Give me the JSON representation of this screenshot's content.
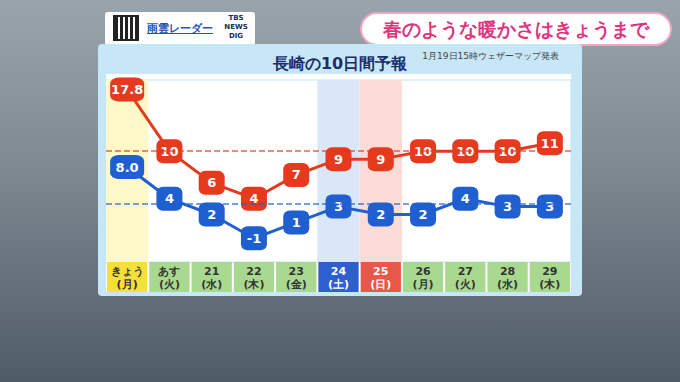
{
  "header": {
    "radar": "雨雲レーダー",
    "logo": "TBS NEWS DIG",
    "headline": "春のような暖かさはきょうまで"
  },
  "chart_data": {
    "type": "line",
    "title": "長崎の10日間予報",
    "subtitle": "1月19日15時ウェザーマップ発表",
    "categories": [
      "きょう",
      "あす",
      "21",
      "22",
      "23",
      "24",
      "25",
      "26",
      "27",
      "28",
      "29"
    ],
    "weekdays": [
      "(月)",
      "(火)",
      "(水)",
      "(木)",
      "(金)",
      "(土)",
      "(日)",
      "(月)",
      "(火)",
      "(水)",
      "(木)"
    ],
    "series": [
      {
        "color": "#e53a1e",
        "marker": "square",
        "line_style": "solid",
        "values": [
          17.8,
          10,
          6,
          4,
          7,
          9,
          9,
          10,
          10,
          10,
          11
        ],
        "normal": 10
      },
      {
        "color": "#1f5fd0",
        "marker": "square",
        "line_style": "solid",
        "values": [
          8,
          4,
          2,
          -1,
          1,
          3,
          2,
          2,
          4,
          3,
          3
        ],
        "value_labels": [
          "8.0",
          "4",
          "2",
          "-1",
          "1",
          "3",
          "2",
          "2",
          "4",
          "3",
          "3"
        ],
        "normal": 3.4
      }
    ],
    "ylim": [
      -4,
      19
    ],
    "yticks": [],
    "tick_labels": "x",
    "grid": false,
    "data_labels": true
  }
}
